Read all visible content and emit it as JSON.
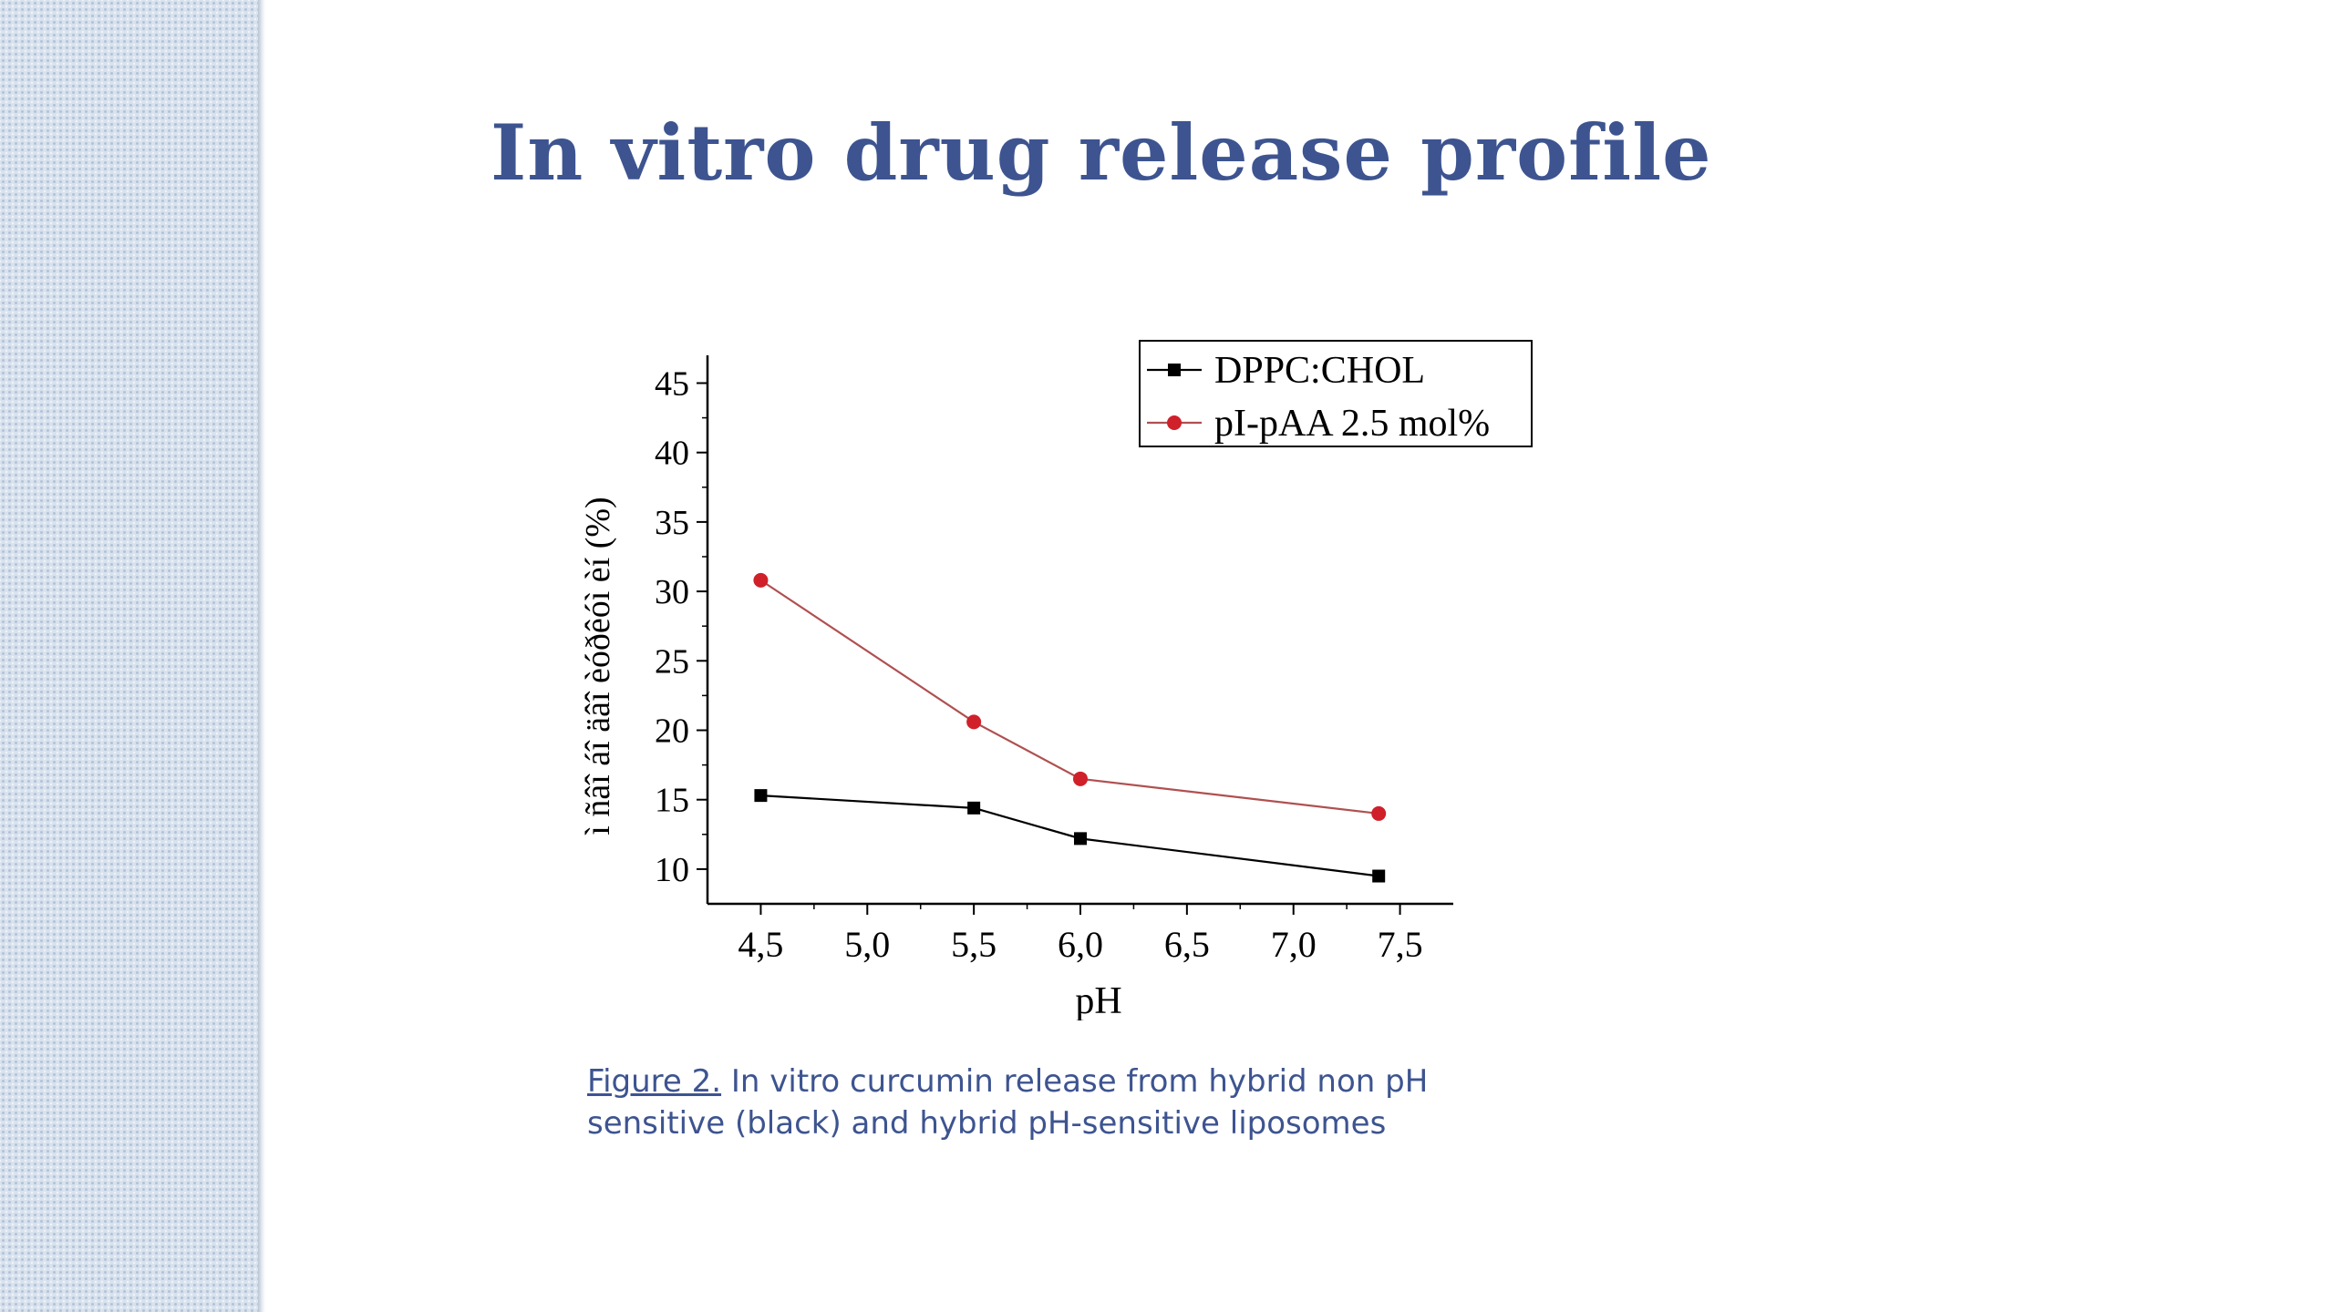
{
  "slide": {
    "title": "In vitro drug release profile",
    "caption_ref": "Figure 2.",
    "caption_text": " In vitro curcumin release from hybrid non pH sensitive (black) and hybrid pH-sensitive liposomes"
  },
  "colors": {
    "title": "#3d5490",
    "series_black": "#000000",
    "series_red": "#d0202a",
    "series_red_line": "#b05050"
  },
  "chart_data": {
    "type": "line",
    "title": "",
    "xlabel": "pH",
    "ylabel": "ì ñâî áî äâî  èóðêóì èí  (%)",
    "xlim": [
      4.25,
      7.75
    ],
    "ylim": [
      7.5,
      47
    ],
    "x_ticks": [
      4.5,
      5.0,
      5.5,
      6.0,
      6.5,
      7.0,
      7.5
    ],
    "x_tick_labels": [
      "4,5",
      "5,0",
      "5,5",
      "6,0",
      "6,5",
      "7,0",
      "7,5"
    ],
    "y_ticks": [
      10,
      15,
      20,
      25,
      30,
      35,
      40,
      45
    ],
    "y_tick_labels": [
      "10",
      "15",
      "20",
      "25",
      "30",
      "35",
      "40",
      "45"
    ],
    "legend_position": "top-right",
    "series": [
      {
        "name": "DPPC:CHOL",
        "color": "#000000",
        "marker": "square",
        "x": [
          4.5,
          5.5,
          6.0,
          7.4
        ],
        "y": [
          15.3,
          14.4,
          12.2,
          9.5
        ]
      },
      {
        "name": "pI-pAA 2.5 mol%",
        "color": "#d0202a",
        "marker": "circle",
        "x": [
          4.5,
          5.5,
          6.0,
          7.4
        ],
        "y": [
          30.8,
          20.6,
          16.5,
          14.0
        ]
      }
    ]
  }
}
